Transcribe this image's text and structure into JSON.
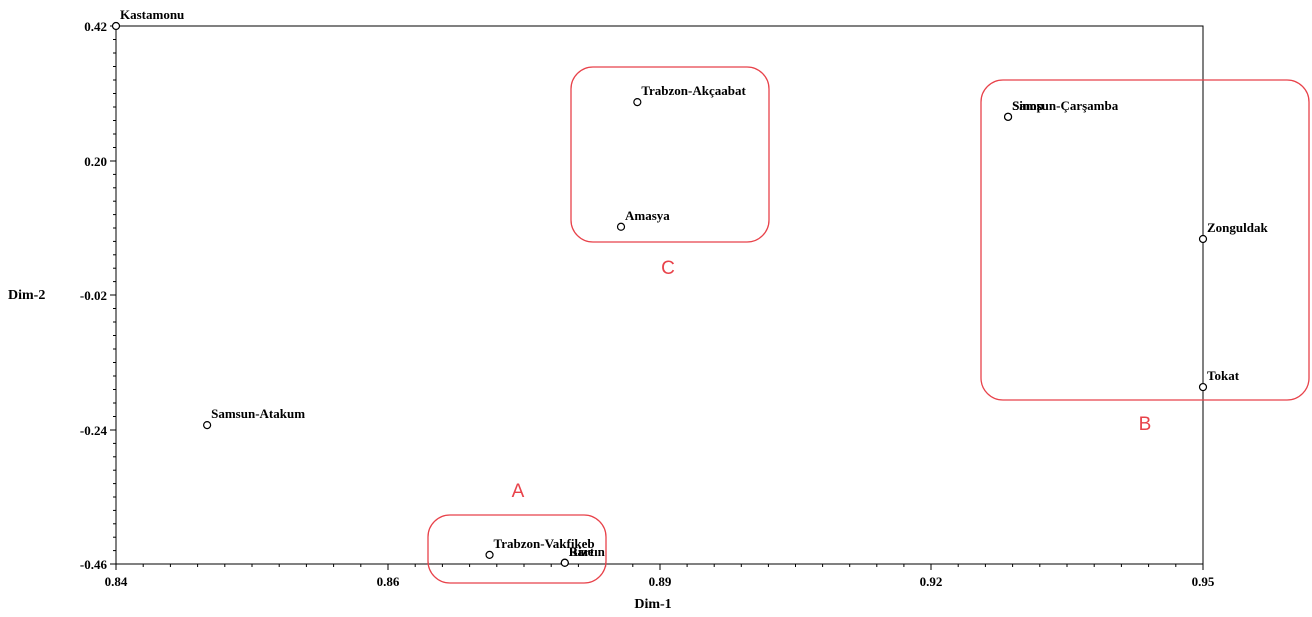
{
  "chart_data": {
    "type": "scatter",
    "title": "",
    "xlabel": "Dim-1",
    "ylabel": "Dim-2",
    "xlim": [
      0.84,
      0.95
    ],
    "ylim": [
      -0.46,
      0.42
    ],
    "x_ticks": [
      "0.84",
      "0.86",
      "0.89",
      "0.92",
      "0.95"
    ],
    "x_tick_values": [
      0.84,
      0.86,
      0.89,
      0.92,
      0.95
    ],
    "y_ticks": [
      "0.42",
      "0.20",
      "-0.02",
      "-0.24",
      "-0.46"
    ],
    "y_tick_values": [
      0.42,
      0.2,
      -0.02,
      -0.24,
      -0.46
    ],
    "grid": false,
    "points": [
      {
        "label": "Kastamonu",
        "x": 0.84,
        "y": 0.42
      },
      {
        "label": "Trabzon-Akçaabat",
        "x": 0.8875,
        "y": 0.296
      },
      {
        "label": "Amasya",
        "x": 0.8857,
        "y": 0.092
      },
      {
        "label": "Samsun-Çarşamba",
        "x": 0.9285,
        "y": 0.272
      },
      {
        "label": "Sinop",
        "x": 0.9285,
        "y": 0.272
      },
      {
        "label": "Zonguldak",
        "x": 0.95,
        "y": 0.072
      },
      {
        "label": "Tokat",
        "x": 0.95,
        "y": -0.17
      },
      {
        "label": "Samsun-Atakum",
        "x": 0.8467,
        "y": -0.232
      },
      {
        "label": "Trabzon-Vakfikeb",
        "x": 0.8712,
        "y": -0.445
      },
      {
        "label": "Rize",
        "x": 0.8795,
        "y": -0.458
      },
      {
        "label": "Bartın",
        "x": 0.8795,
        "y": -0.458
      }
    ],
    "annotations": [
      {
        "text": "A",
        "x0": 0.8712,
        "y0": -0.465,
        "x1": 0.8801,
        "y1": -0.355
      },
      {
        "text": "B",
        "x0": 0.9265,
        "y0": 0.13,
        "x1": 0.951,
        "y1": 0.33
      },
      {
        "text": "C",
        "x0": 0.874,
        "y0": -0.095,
        "x1": 0.885,
        "y1": 0.385
      }
    ]
  }
}
